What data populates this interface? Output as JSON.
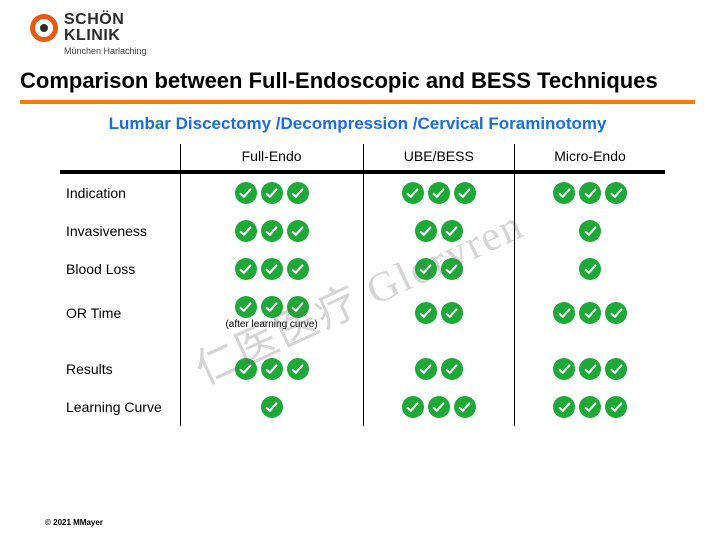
{
  "logo": {
    "brand_top": "SCHÖN",
    "brand_bottom": "KLINIK",
    "sub": "München Harlaching",
    "ring_color": "#e95b0c",
    "dot_color": "#2b2b2b"
  },
  "title": "Comparison between Full-Endoscopic and BESS Techniques",
  "hr_color": "#e98200",
  "subtitle": "Lumbar Discectomy /Decompression /Cervical Foraminotomy",
  "subtitle_color": "#1a6fd6",
  "columns": [
    "Full-Endo",
    "UBE/BESS",
    "Micro-Endo"
  ],
  "rows": [
    {
      "label": "Indication",
      "checks": [
        3,
        3,
        3
      ],
      "note": ""
    },
    {
      "label": "Invasiveness",
      "checks": [
        3,
        2,
        1
      ],
      "note": ""
    },
    {
      "label": "Blood Loss",
      "checks": [
        3,
        2,
        1
      ],
      "note": ""
    },
    {
      "label": "OR Time",
      "checks": [
        3,
        2,
        3
      ],
      "note": "(after learning curve)"
    },
    {
      "label": "Results",
      "checks": [
        3,
        2,
        3
      ],
      "note": ""
    },
    {
      "label": "Learning Curve",
      "checks": [
        1,
        3,
        3
      ],
      "note": ""
    }
  ],
  "check_color": "#1ea838",
  "tick_color": "#ffffff",
  "footer": "© 2021 MMayer",
  "watermark": "仁医医疗 Gloryren"
}
